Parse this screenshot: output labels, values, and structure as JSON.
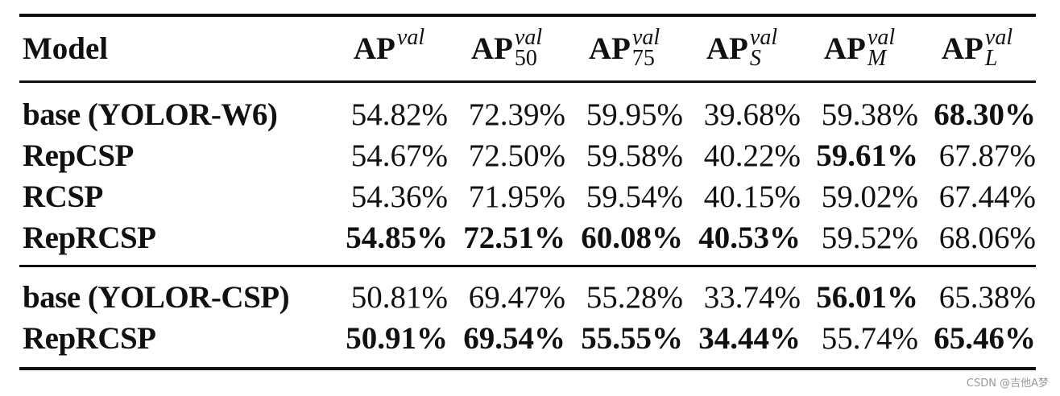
{
  "table": {
    "header": [
      {
        "text": "Model"
      },
      {
        "base": "AP",
        "sup": "val"
      },
      {
        "base": "AP",
        "sup": "val",
        "sub": "50"
      },
      {
        "base": "AP",
        "sup": "val",
        "sub": "75"
      },
      {
        "base": "AP",
        "sup": "val",
        "sub": "S"
      },
      {
        "base": "AP",
        "sup": "val",
        "sub": "M"
      },
      {
        "base": "AP",
        "sup": "val",
        "sub": "L"
      }
    ],
    "groups": [
      [
        {
          "model": "base (YOLOR-W6)",
          "cells": [
            {
              "text": "54.82%"
            },
            {
              "text": "72.39%"
            },
            {
              "text": "59.95%"
            },
            {
              "text": "39.68%"
            },
            {
              "text": "59.38%"
            },
            {
              "text": "68.30%",
              "bold": true
            }
          ]
        },
        {
          "model": "RepCSP",
          "cells": [
            {
              "text": "54.67%"
            },
            {
              "text": "72.50%"
            },
            {
              "text": "59.58%"
            },
            {
              "text": "40.22%"
            },
            {
              "text": "59.61%",
              "bold": true
            },
            {
              "text": "67.87%"
            }
          ]
        },
        {
          "model": "RCSP",
          "cells": [
            {
              "text": "54.36%"
            },
            {
              "text": "71.95%"
            },
            {
              "text": "59.54%"
            },
            {
              "text": "40.15%"
            },
            {
              "text": "59.02%"
            },
            {
              "text": "67.44%"
            }
          ]
        },
        {
          "model": "RepRCSP",
          "cells": [
            {
              "text": "54.85%",
              "bold": true
            },
            {
              "text": "72.51%",
              "bold": true
            },
            {
              "text": "60.08%",
              "bold": true
            },
            {
              "text": "40.53%",
              "bold": true
            },
            {
              "text": "59.52%"
            },
            {
              "text": "68.06%"
            }
          ]
        }
      ],
      [
        {
          "model": "base (YOLOR-CSP)",
          "cells": [
            {
              "text": "50.81%"
            },
            {
              "text": "69.47%"
            },
            {
              "text": "55.28%"
            },
            {
              "text": "33.74%"
            },
            {
              "text": "56.01%",
              "bold": true
            },
            {
              "text": "65.38%"
            }
          ]
        },
        {
          "model": "RepRCSP",
          "cells": [
            {
              "text": "50.91%",
              "bold": true
            },
            {
              "text": "69.54%",
              "bold": true
            },
            {
              "text": "55.55%",
              "bold": true
            },
            {
              "text": "34.44%",
              "bold": true
            },
            {
              "text": "55.74%"
            },
            {
              "text": "65.46%",
              "bold": true
            }
          ]
        }
      ]
    ]
  },
  "watermark": "CSDN @吉他A梦"
}
